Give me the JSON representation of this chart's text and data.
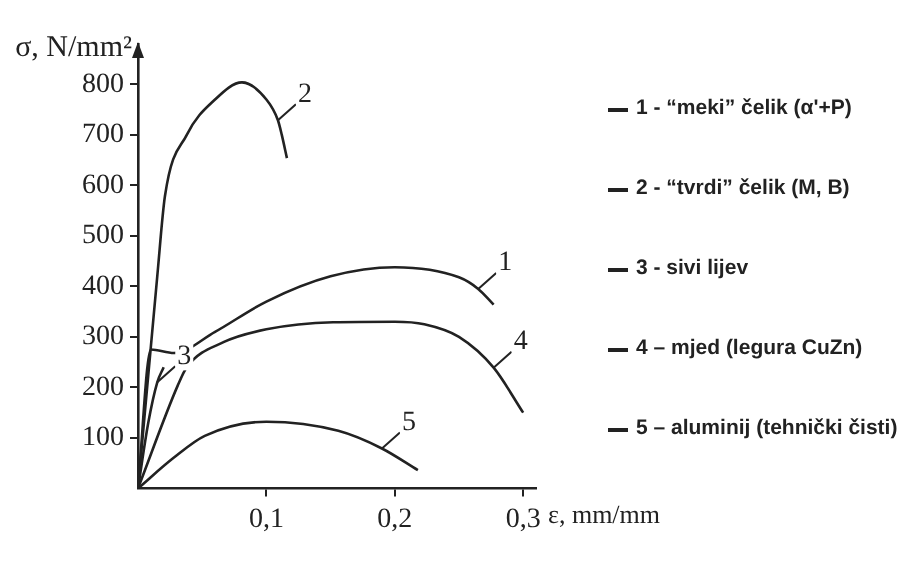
{
  "chart_data": {
    "type": "line",
    "xlabel": "ε, mm/mm",
    "ylabel": "σ, N/mm²",
    "xlim": [
      0,
      0.31
    ],
    "ylim": [
      0,
      880
    ],
    "xticks": [
      {
        "value": 0.1,
        "label": "0,1"
      },
      {
        "value": 0.2,
        "label": "0,2"
      },
      {
        "value": 0.3,
        "label": "0,3"
      }
    ],
    "yticks": [
      100,
      200,
      300,
      400,
      500,
      600,
      700,
      800
    ],
    "grid": false,
    "legend": "right",
    "marker": "none",
    "line_style": "solid",
    "series": [
      {
        "name": "1 - “meki”  čelik (α'+P)",
        "color": "#222222",
        "x": [
          0,
          0.01,
          0.028,
          0.06,
          0.1,
          0.15,
          0.2,
          0.25,
          0.265,
          0.277
        ],
        "values": [
          0,
          275,
          268,
          310,
          370,
          420,
          438,
          418,
          395,
          364
        ]
      },
      {
        "name": "2 -  “tvrdi” čelik (M, B)",
        "color": "#222222",
        "x": [
          0,
          0.015,
          0.021,
          0.038,
          0.06,
          0.081,
          0.1,
          0.109,
          0.112,
          0.116
        ],
        "values": [
          0,
          420,
          579,
          700,
          770,
          804,
          770,
          729,
          700,
          654
        ]
      },
      {
        "name": "3 - sivi lijev",
        "color": "#222222",
        "x": [
          0,
          0.008,
          0.015,
          0.02
        ],
        "values": [
          0,
          130,
          210,
          240
        ]
      },
      {
        "name": "4 – mjed (legura CuZn)",
        "color": "#222222",
        "x": [
          0,
          0.031,
          0.038,
          0.067,
          0.1,
          0.152,
          0.2,
          0.223,
          0.25,
          0.277,
          0.3
        ],
        "values": [
          0,
          204,
          240,
          290,
          315,
          329,
          330,
          325,
          300,
          239,
          150
        ]
      },
      {
        "name": "5 – aluminij (tehnički čisti)",
        "color": "#222222",
        "x": [
          0,
          0.028,
          0.052,
          0.1,
          0.156,
          0.19,
          0.218
        ],
        "values": [
          0,
          61,
          104,
          132,
          114,
          79,
          36
        ]
      }
    ],
    "annotations": [
      {
        "text": "1",
        "x": 0.265,
        "y": 395
      },
      {
        "text": "2",
        "x": 0.109,
        "y": 729
      },
      {
        "text": "3",
        "x": 0.015,
        "y": 210
      },
      {
        "text": "4",
        "x": 0.277,
        "y": 239
      },
      {
        "text": "5",
        "x": 0.19,
        "y": 79
      }
    ]
  }
}
